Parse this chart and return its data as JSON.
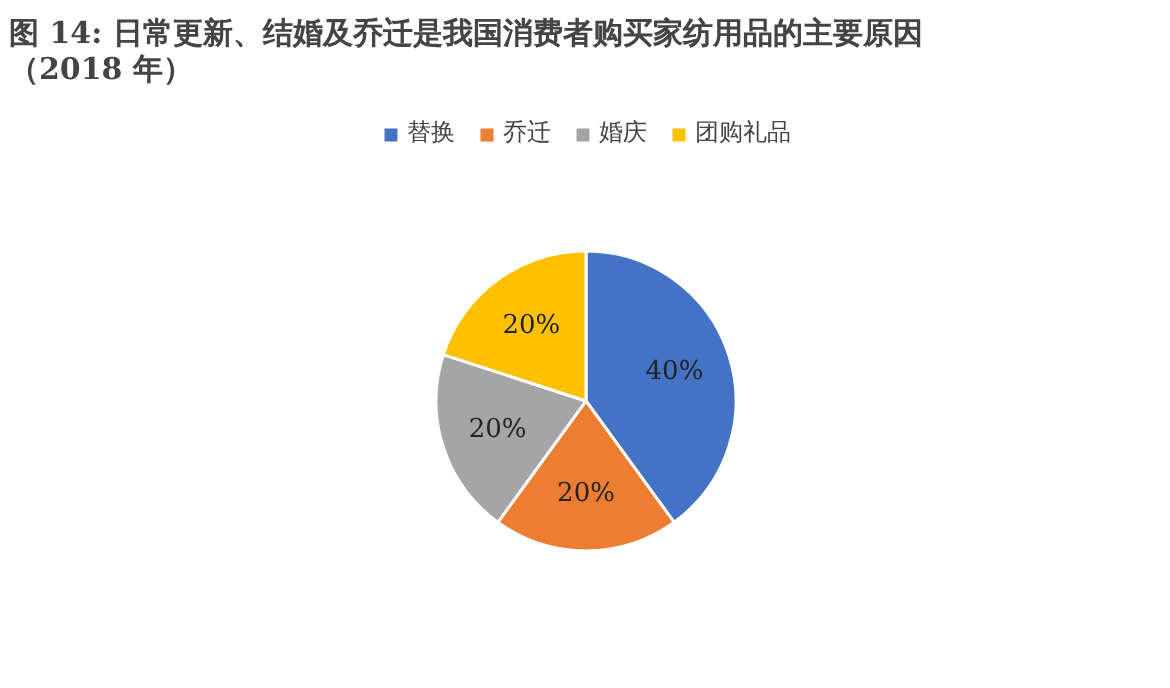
{
  "chart_data": {
    "type": "pie",
    "title": "图 14: 日常更新、结婚及乔迁是我国消费者购买家纺用品的主要原因（2018 年）",
    "categories": [
      "替换",
      "乔迁",
      "婚庆",
      "团购礼品"
    ],
    "values": [
      40,
      20,
      20,
      20
    ],
    "colors": [
      "#4472c4",
      "#ed7d31",
      "#a5a5a5",
      "#ffc000"
    ],
    "value_labels": [
      "40%",
      "20%",
      "20%",
      "20%"
    ],
    "legend": "top"
  }
}
